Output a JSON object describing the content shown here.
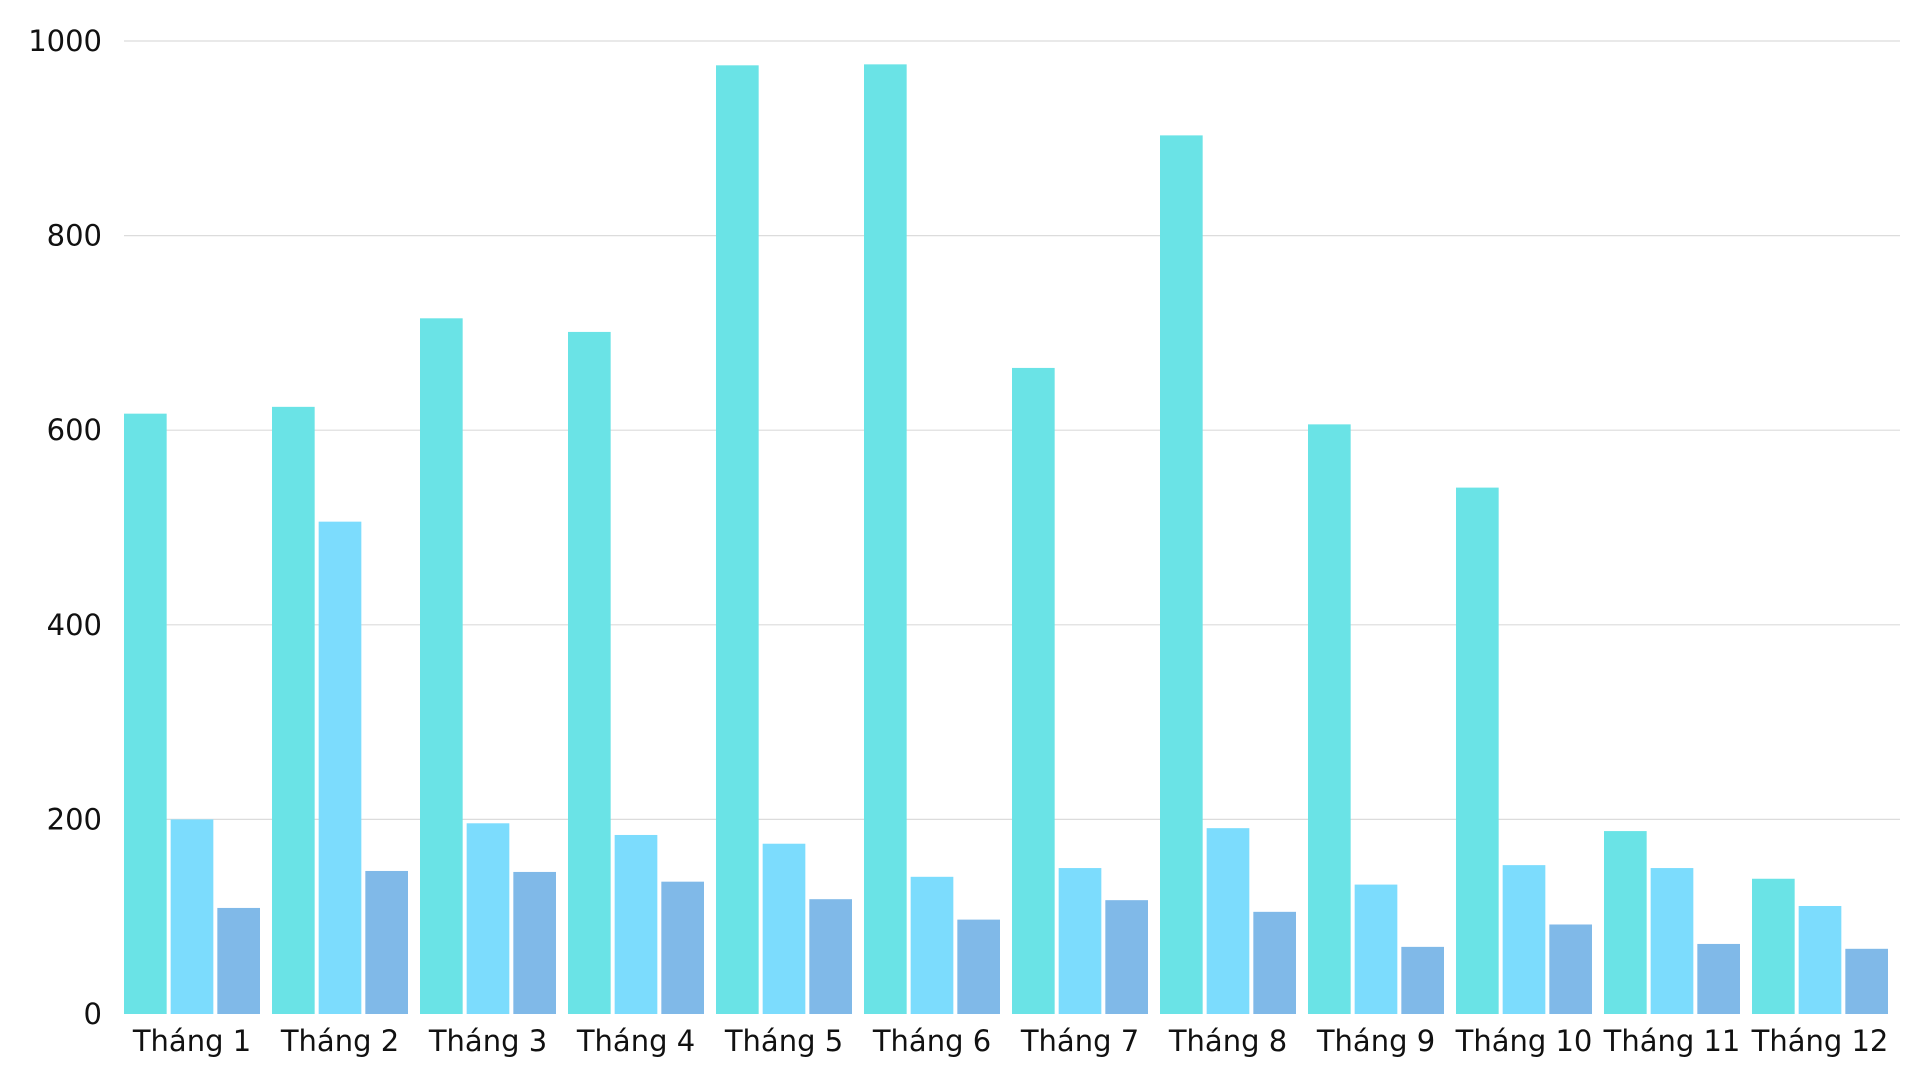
{
  "chart_data": {
    "type": "bar",
    "title": "",
    "xlabel": "",
    "ylabel": "",
    "ylim": [
      0,
      1000
    ],
    "yticks": [
      0,
      200,
      400,
      600,
      800,
      1000
    ],
    "grid": true,
    "categories": [
      "Tháng 1",
      "Tháng 2",
      "Tháng 3",
      "Tháng 4",
      "Tháng 5",
      "Tháng 6",
      "Tháng 7",
      "Tháng 8",
      "Tháng 9",
      "Tháng 10",
      "Tháng 11",
      "Tháng 12"
    ],
    "series": [
      {
        "color": "#6ae3e6",
        "values": [
          617,
          624,
          715,
          701,
          975,
          976,
          664,
          903,
          606,
          541,
          188,
          139
        ]
      },
      {
        "color": "#7cdcfd",
        "values": [
          200,
          506,
          196,
          184,
          175,
          141,
          150,
          191,
          133,
          153,
          150,
          111
        ]
      },
      {
        "color": "#80b9e8",
        "values": [
          109,
          147,
          146,
          136,
          118,
          97,
          117,
          105,
          69,
          92,
          72,
          67
        ]
      }
    ]
  }
}
